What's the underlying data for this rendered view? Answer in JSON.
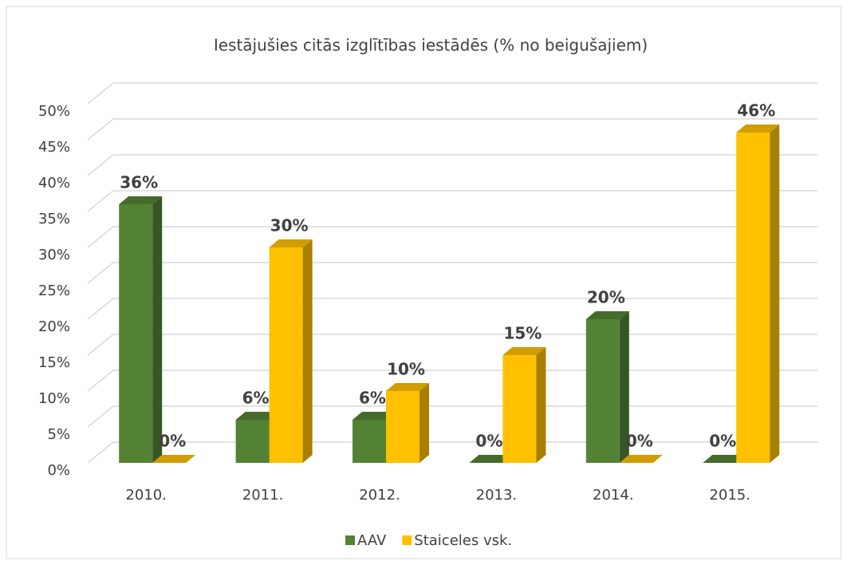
{
  "chart_data": {
    "type": "bar3d",
    "title": "Iestājušies citās izglītības iestādēs (% no beigušajiem)",
    "categories": [
      "2010.",
      "2011.",
      "2012.",
      "2013.",
      "2014.",
      "2015."
    ],
    "series": [
      {
        "name": "AAV",
        "color": "#548235",
        "values": [
          36,
          6,
          6,
          0,
          20,
          0
        ],
        "value_labels": [
          "36%",
          "6%",
          "6%",
          "0%",
          "20%",
          "0%"
        ]
      },
      {
        "name": "Staiceles vsk.",
        "color": "#ffc000",
        "values": [
          0,
          30,
          10,
          15,
          0,
          46
        ],
        "value_labels": [
          "0%",
          "30%",
          "10%",
          "15%",
          "0%",
          "46%"
        ]
      }
    ],
    "ylim": [
      0,
      50
    ],
    "yticks": [
      {
        "value": 0,
        "label": "0%"
      },
      {
        "value": 5,
        "label": "5%"
      },
      {
        "value": 10,
        "label": "10%"
      },
      {
        "value": 15,
        "label": "15%"
      },
      {
        "value": 20,
        "label": "20%"
      },
      {
        "value": 25,
        "label": "25%"
      },
      {
        "value": 30,
        "label": "30%"
      },
      {
        "value": 35,
        "label": "35%"
      },
      {
        "value": 40,
        "label": "40%"
      },
      {
        "value": 45,
        "label": "45%"
      },
      {
        "value": 50,
        "label": "50%"
      }
    ],
    "grid": true,
    "legend": "bottom"
  }
}
